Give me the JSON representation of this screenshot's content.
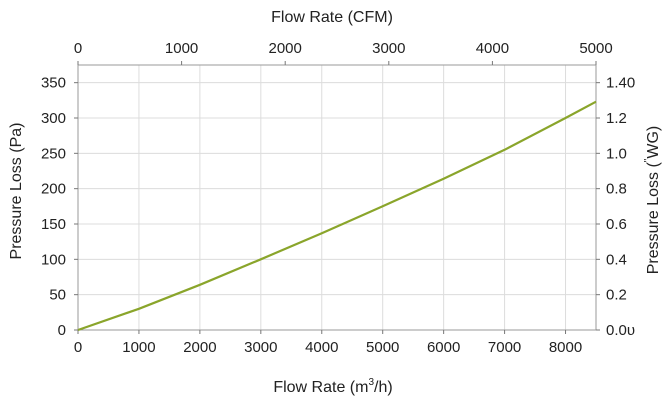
{
  "chart_data": {
    "type": "line",
    "title": "",
    "grid": true,
    "line_color": "#8aa52b",
    "x_bottom": {
      "label_prefix": "Flow Rate (m",
      "label_sup": "3",
      "label_suffix": "/h)",
      "range": [
        0,
        8500
      ],
      "ticks": [
        0,
        1000,
        2000,
        3000,
        4000,
        5000,
        6000,
        7000,
        8000
      ]
    },
    "x_top": {
      "label": "Flow Rate (CFM)",
      "range": [
        0,
        5000
      ],
      "ticks": [
        0,
        1000,
        2000,
        3000,
        4000,
        5000
      ]
    },
    "y_left": {
      "label": "Pressure Loss (Pa)",
      "range": [
        0,
        375
      ],
      "ticks": [
        0,
        50,
        100,
        150,
        200,
        250,
        300,
        350
      ]
    },
    "y_right": {
      "label_prefix": "Pressure Loss (",
      "label_sup": "\"",
      "label_suffix": "WG)",
      "range": [
        0,
        1.5
      ],
      "ticks": [
        "0.0υ",
        "0.2",
        "0.4",
        "0.6",
        "0.8",
        "1.0",
        "1.2",
        "1.40"
      ]
    },
    "series": [
      {
        "x": [
          0,
          1000,
          2000,
          3000,
          4000,
          5000,
          6000,
          7000,
          8000,
          8500
        ],
        "y": [
          0,
          30,
          64,
          100,
          137,
          175,
          214,
          255,
          300,
          323
        ]
      }
    ]
  }
}
